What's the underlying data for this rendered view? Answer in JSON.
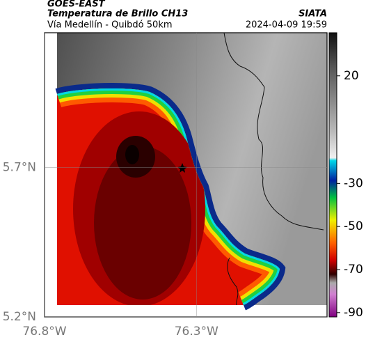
{
  "header": {
    "title": "GOES-EAST",
    "subtitle": "Temperatura de Brillo CH13",
    "source": "SIATA",
    "route": "Vía Medellín - Quibdó 50km",
    "timestamp": "2024-04-09 19:59"
  },
  "map": {
    "xlim": [
      -76.8,
      -75.87
    ],
    "ylim": [
      5.2,
      6.15
    ],
    "xticks": [
      {
        "value": -76.8,
        "label": "76.8°W"
      },
      {
        "value": -76.3,
        "label": "76.3°W"
      }
    ],
    "yticks": [
      {
        "value": 5.2,
        "label": "5.2°N"
      },
      {
        "value": 5.7,
        "label": "5.7°N"
      }
    ],
    "grid": true
  },
  "colorbar": {
    "clim": [
      -92,
      40
    ],
    "ticks": [
      20,
      -30,
      -50,
      -70,
      -90
    ]
  }
}
